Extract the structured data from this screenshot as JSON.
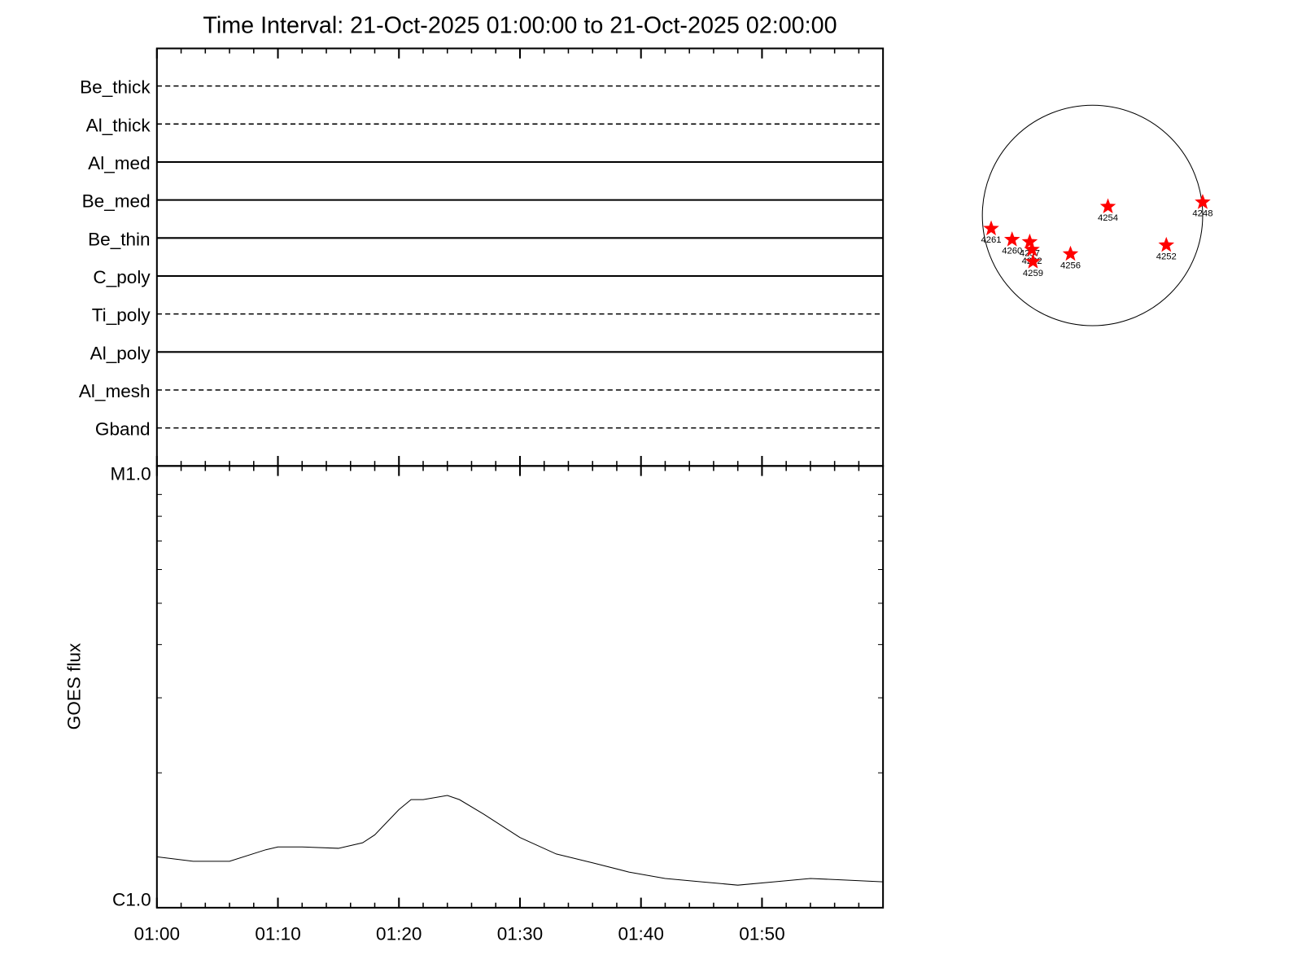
{
  "chart_data": [
    {
      "type": "filters",
      "title": "Time Interval: 21-Oct-2025 01:00:00 to 21-Oct-2025 02:00:00",
      "categories": [
        "Be_thick",
        "Al_thick",
        "Al_med",
        "Be_med",
        "Be_thin",
        "C_poly",
        "Ti_poly",
        "Al_poly",
        "Al_mesh",
        "Gband"
      ],
      "line_styles": [
        "dashed",
        "dashed",
        "solid",
        "solid",
        "solid",
        "solid",
        "dashed",
        "solid",
        "dashed",
        "dashed"
      ]
    },
    {
      "type": "line",
      "ylabel": "GOES flux",
      "x": [
        "01:00",
        "01:03",
        "01:06",
        "01:09",
        "01:10",
        "01:12",
        "01:15",
        "01:17",
        "01:18",
        "01:20",
        "01:21",
        "01:22",
        "01:24",
        "01:25",
        "01:27",
        "01:30",
        "01:33",
        "01:36",
        "01:39",
        "01:42",
        "01:45",
        "01:48",
        "01:51",
        "01:54",
        "01:57",
        "02:00"
      ],
      "values": [
        1.27e-06,
        1.24e-06,
        1.24e-06,
        1.32e-06,
        1.34e-06,
        1.34e-06,
        1.33e-06,
        1.37e-06,
        1.43e-06,
        1.64e-06,
        1.73e-06,
        1.73e-06,
        1.77e-06,
        1.73e-06,
        1.6e-06,
        1.41e-06,
        1.29e-06,
        1.23e-06,
        1.17e-06,
        1.13e-06,
        1.11e-06,
        1.09e-06,
        1.11e-06,
        1.13e-06,
        1.12e-06,
        1.11e-06
      ],
      "color": "#000000",
      "log_y": true,
      "xlim": [
        "01:00",
        "02:00"
      ],
      "xticks": [
        "01:00",
        "01:10",
        "01:20",
        "01:30",
        "01:40",
        "01:50"
      ],
      "xminor_ticks": [
        "01:02",
        "01:04",
        "01:06",
        "01:08",
        "01:12",
        "01:14",
        "01:16",
        "01:18",
        "01:22",
        "01:24",
        "01:26",
        "01:28",
        "01:32",
        "01:34",
        "01:36",
        "01:38",
        "01:42",
        "01:44",
        "01:46",
        "01:48",
        "01:52",
        "01:54",
        "01:56",
        "01:58"
      ],
      "ylim": [
        9.65e-07,
        1.05e-05
      ],
      "yticks": [
        {
          "value": 1e-06,
          "label": "C1.0"
        },
        {
          "value": 1e-05,
          "label": "M1.0"
        }
      ],
      "yminor_ticks": [
        2e-06,
        3e-06,
        4e-06,
        5e-06,
        6e-06,
        7e-06,
        8e-06,
        9e-06
      ]
    },
    {
      "type": "scatter",
      "labels": [
        "4261",
        "4260",
        "4257",
        "4262",
        "4259",
        "4256",
        "4254",
        "4252",
        "4248"
      ],
      "x": [
        -0.92,
        -0.73,
        -0.57,
        -0.55,
        -0.54,
        -0.2,
        0.14,
        0.67,
        1.0
      ],
      "y": [
        -0.12,
        -0.22,
        -0.24,
        -0.31,
        -0.42,
        -0.35,
        0.08,
        -0.27,
        0.12
      ],
      "color": "#ff0000",
      "xlim": [
        -1,
        1
      ],
      "ylim": [
        -1,
        1
      ]
    }
  ]
}
